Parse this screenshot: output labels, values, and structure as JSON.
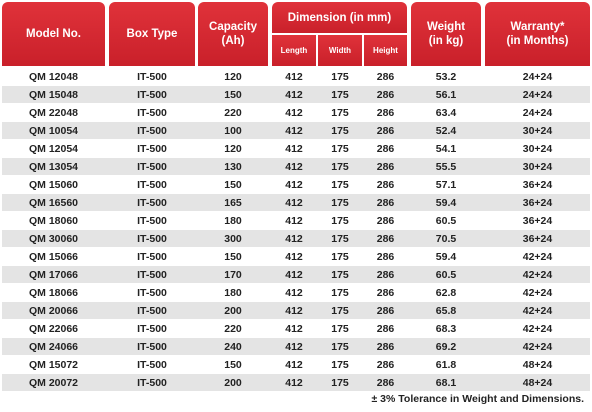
{
  "header": {
    "model": "Model No.",
    "box_type": "Box Type",
    "capacity": [
      "Capacity",
      "(Ah)"
    ],
    "dimension": "Dimension (in mm)",
    "length": "Length",
    "width": "Width",
    "height": "Height",
    "weight": [
      "Weight",
      "(in kg)"
    ],
    "warranty": [
      "Warranty*",
      "(in Months)"
    ]
  },
  "table": {
    "rows": [
      [
        "QM 12048",
        "IT-500",
        120,
        412,
        175,
        286,
        53.2,
        "24+24"
      ],
      [
        "QM 15048",
        "IT-500",
        150,
        412,
        175,
        286,
        56.1,
        "24+24"
      ],
      [
        "QM 22048",
        "IT-500",
        220,
        412,
        175,
        286,
        63.4,
        "24+24"
      ],
      [
        "QM 10054",
        "IT-500",
        100,
        412,
        175,
        286,
        52.4,
        "30+24"
      ],
      [
        "QM 12054",
        "IT-500",
        120,
        412,
        175,
        286,
        54.1,
        "30+24"
      ],
      [
        "QM 13054",
        "IT-500",
        130,
        412,
        175,
        286,
        55.5,
        "30+24"
      ],
      [
        "QM 15060",
        "IT-500",
        150,
        412,
        175,
        286,
        57.1,
        "36+24"
      ],
      [
        "QM 16560",
        "IT-500",
        165,
        412,
        175,
        286,
        59.4,
        "36+24"
      ],
      [
        "QM 18060",
        "IT-500",
        180,
        412,
        175,
        286,
        60.5,
        "36+24"
      ],
      [
        "QM 30060",
        "IT-500",
        300,
        412,
        175,
        286,
        70.5,
        "36+24"
      ],
      [
        "QM 15066",
        "IT-500",
        150,
        412,
        175,
        286,
        59.4,
        "42+24"
      ],
      [
        "QM 17066",
        "IT-500",
        170,
        412,
        175,
        286,
        60.5,
        "42+24"
      ],
      [
        "QM 18066",
        "IT-500",
        180,
        412,
        175,
        286,
        62.8,
        "42+24"
      ],
      [
        "QM 20066",
        "IT-500",
        200,
        412,
        175,
        286,
        65.8,
        "42+24"
      ],
      [
        "QM 22066",
        "IT-500",
        220,
        412,
        175,
        286,
        68.3,
        "42+24"
      ],
      [
        "QM 24066",
        "IT-500",
        240,
        412,
        175,
        286,
        69.2,
        "42+24"
      ],
      [
        "QM 15072",
        "IT-500",
        150,
        412,
        175,
        286,
        61.8,
        "48+24"
      ],
      [
        "QM 20072",
        "IT-500",
        200,
        412,
        175,
        286,
        68.1,
        "48+24"
      ]
    ]
  },
  "footnote": "± 3% Tolerance in Weight and Dimensions."
}
